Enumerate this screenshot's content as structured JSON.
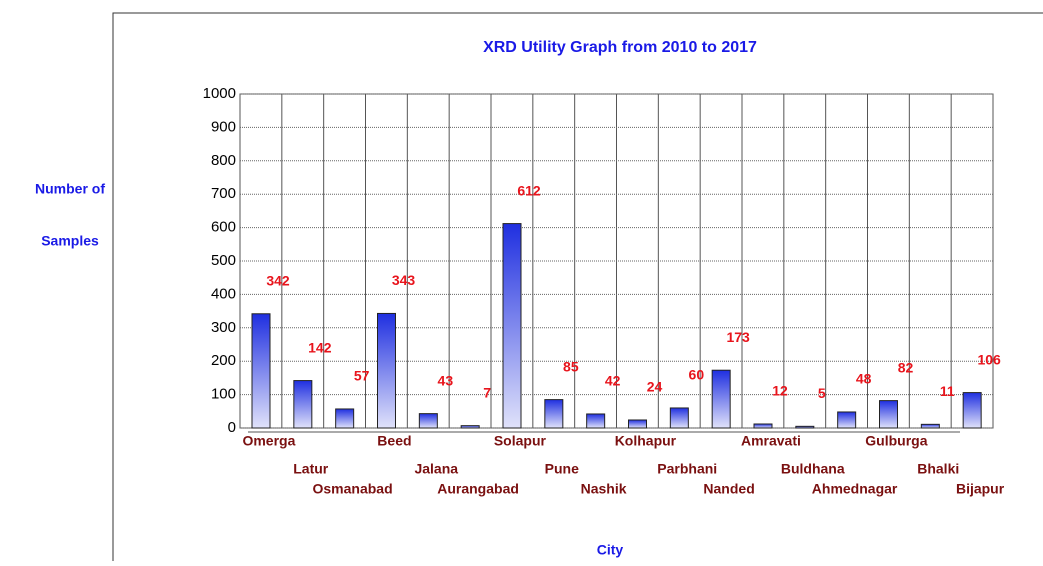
{
  "chart_data": {
    "type": "bar",
    "title": "XRD Utility Graph from 2010 to 2017",
    "ylabel": [
      "Number of",
      "Samples"
    ],
    "xlabel": "City",
    "categories": [
      "Omerga",
      "Latur",
      "Osmanabad",
      "Beed",
      "Jalana",
      "Aurangabad",
      "Solapur",
      "Pune",
      "Nashik",
      "Kolhapur",
      "Parbhani",
      "Nanded",
      "Amravati",
      "Buldhana",
      "Ahmednagar",
      "Gulburga",
      "Bhalki",
      "Bijapur"
    ],
    "values": [
      342,
      142,
      57,
      343,
      43,
      7,
      612,
      85,
      42,
      24,
      60,
      173,
      12,
      5,
      48,
      82,
      11,
      106
    ],
    "color": "#1f2fe0",
    "ylim": [
      0,
      1000
    ],
    "yticks": [
      0,
      100,
      200,
      300,
      400,
      500,
      600,
      700,
      800,
      900,
      1000
    ],
    "grid": true
  }
}
